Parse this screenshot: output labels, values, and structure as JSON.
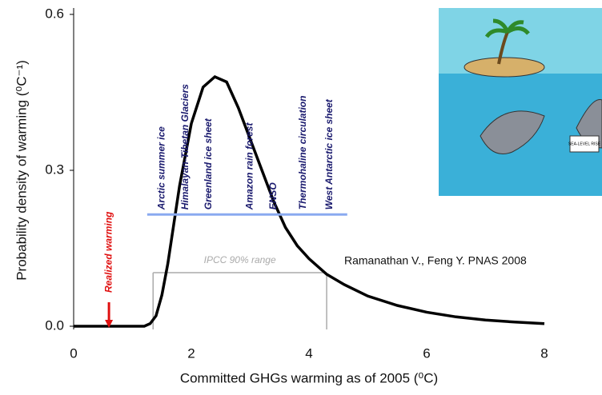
{
  "chart_data": {
    "type": "line",
    "x_label": "Committed GHGs warming as of 2005 (⁰C)",
    "y_label": "Probability density of warming (⁰C⁻¹)",
    "x": [
      0,
      0.5,
      1.0,
      1.2,
      1.3,
      1.4,
      1.5,
      1.6,
      1.8,
      2.0,
      2.2,
      2.4,
      2.6,
      2.8,
      3.0,
      3.2,
      3.4,
      3.6,
      3.8,
      4.0,
      4.3,
      4.6,
      5.0,
      5.5,
      6.0,
      6.5,
      7.0,
      7.5,
      8.0
    ],
    "series": [
      {
        "color": "#000000",
        "values": [
          0,
          0,
          0,
          0,
          0.005,
          0.02,
          0.06,
          0.12,
          0.27,
          0.39,
          0.46,
          0.48,
          0.47,
          0.42,
          0.36,
          0.3,
          0.24,
          0.19,
          0.155,
          0.13,
          0.1,
          0.08,
          0.058,
          0.04,
          0.027,
          0.018,
          0.012,
          0.008,
          0.005
        ]
      }
    ],
    "xlim": [
      0,
      8
    ],
    "ylim": [
      0,
      0.6
    ],
    "xticks": [
      0,
      2,
      4,
      6,
      8
    ],
    "yticks": [
      {
        "value": 0,
        "label": "0.0"
      },
      0.3,
      0.6
    ],
    "realized_warming": {
      "label": "Realized warming",
      "x": 0.6,
      "color": "#e01010"
    },
    "impacts_line": {
      "x": [
        1.25,
        4.65
      ],
      "y": 0.215,
      "color": "#8aaaf0"
    },
    "impacts": [
      {
        "label": "Arctic summer ice",
        "x": 1.5
      },
      {
        "label": "Himalayan-Tibetan Glaciers",
        "x": 1.9
      },
      {
        "label": "Greenland ice sheet",
        "x": 2.3
      },
      {
        "label": "Amazon rain forest",
        "x": 3.0
      },
      {
        "label": "ENSO",
        "x": 3.4
      },
      {
        "label": "Thermohaline circulation",
        "x": 3.9
      },
      {
        "label": "West Antarctic ice sheet",
        "x": 4.35
      }
    ],
    "ipcc_range": {
      "label": "IPCC 90% range",
      "x": [
        1.35,
        4.3
      ],
      "y": 0.103,
      "color": "#aaaaaa"
    },
    "citation": "Ramanathan V., Feng Y. PNAS 2008",
    "cartoon_sign": "SEA-LEVEL RISE"
  }
}
